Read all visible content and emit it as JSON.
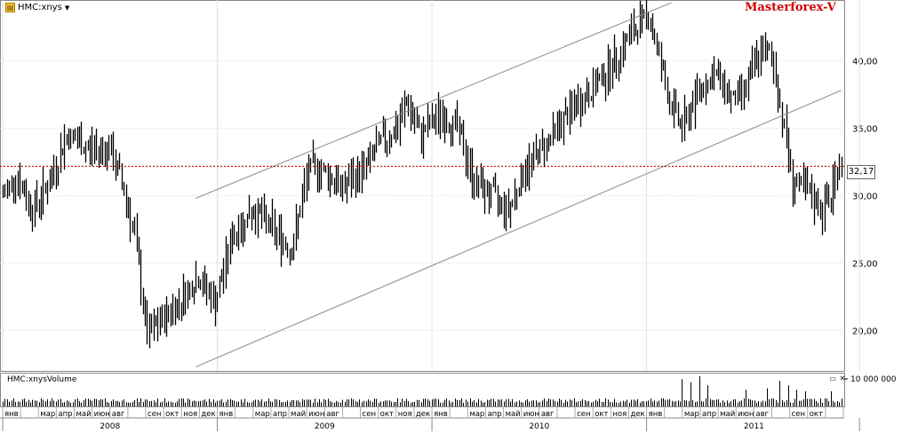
{
  "header": {
    "symbol": "HMC:xnys",
    "dropdown_icon": "chevron-down-icon",
    "symbol_icon": "chart-icon"
  },
  "brand": {
    "label": "Masterforex-V",
    "color": "#cc0000"
  },
  "volume_panel": {
    "title": "HMC:xnysVolume",
    "axis_label": "10 000 000",
    "minimize_icon": "minimize-icon",
    "close_icon": "close-icon"
  },
  "last_price": {
    "label": "32,17",
    "color": "#cc0000"
  },
  "chart_data": {
    "type": "ohlc",
    "title": "",
    "ylim": [
      17,
      44.5
    ],
    "y_ticks": [
      "20,00",
      "25,00",
      "30,00",
      "35,00",
      "40,00"
    ],
    "y_tick_values": [
      20,
      25,
      30,
      35,
      40
    ],
    "last_value": 32.17,
    "grid": true,
    "years": [
      "2008",
      "2009",
      "2010",
      "2011"
    ],
    "months": [
      "янв",
      "мар",
      "апр",
      "май",
      "июн",
      "авг",
      "сен",
      "окт",
      "ноя",
      "дек",
      "янв",
      "мар",
      "апр",
      "май",
      "июн",
      "авг",
      "сен",
      "окт",
      "ноя",
      "дек",
      "янв",
      "мар",
      "апр",
      "май",
      "июн",
      "авг",
      "сен",
      "окт",
      "ноя",
      "дек",
      "янв",
      "мар",
      "апр",
      "май",
      "июн",
      "авг",
      "сен",
      "окт"
    ],
    "price_keypoints": [
      [
        0,
        30
      ],
      [
        6,
        31.5
      ],
      [
        14,
        29
      ],
      [
        22,
        31
      ],
      [
        30,
        34.5
      ],
      [
        40,
        33.5
      ],
      [
        50,
        33.5
      ],
      [
        56,
        31
      ],
      [
        62,
        27
      ],
      [
        68,
        19.5
      ],
      [
        76,
        21
      ],
      [
        82,
        22
      ],
      [
        92,
        24
      ],
      [
        100,
        22
      ],
      [
        108,
        27
      ],
      [
        118,
        29
      ],
      [
        130,
        27
      ],
      [
        136,
        26
      ],
      [
        144,
        32
      ],
      [
        150,
        32
      ],
      [
        160,
        30.5
      ],
      [
        170,
        32
      ],
      [
        178,
        34
      ],
      [
        186,
        35
      ],
      [
        190,
        37
      ],
      [
        196,
        34.5
      ],
      [
        206,
        36
      ],
      [
        214,
        35
      ],
      [
        222,
        31
      ],
      [
        230,
        30
      ],
      [
        238,
        29
      ],
      [
        246,
        32
      ],
      [
        256,
        34
      ],
      [
        266,
        36
      ],
      [
        278,
        38
      ],
      [
        288,
        40
      ],
      [
        296,
        42
      ],
      [
        304,
        43.5
      ],
      [
        308,
        41
      ],
      [
        314,
        37
      ],
      [
        320,
        35
      ],
      [
        328,
        38
      ],
      [
        336,
        39
      ],
      [
        344,
        37
      ],
      [
        350,
        38
      ],
      [
        356,
        40.5
      ],
      [
        362,
        40.5
      ],
      [
        368,
        35
      ],
      [
        372,
        31
      ],
      [
        380,
        30
      ],
      [
        386,
        29
      ],
      [
        390,
        30
      ],
      [
        393,
        32.17
      ]
    ],
    "volume_spikes": [
      [
        320,
        0.9
      ],
      [
        324,
        0.8
      ],
      [
        328,
        1.0
      ],
      [
        332,
        0.7
      ],
      [
        350,
        0.55
      ],
      [
        360,
        0.6
      ],
      [
        366,
        0.85
      ],
      [
        370,
        0.7
      ],
      [
        374,
        0.55
      ],
      [
        378,
        0.5
      ],
      [
        390,
        0.5
      ]
    ],
    "channel": {
      "upper": {
        "start": [
          91,
          29.8
        ],
        "end": [
          315,
          44.3
        ]
      },
      "lower": {
        "start": [
          91,
          17.3
        ],
        "end": [
          395,
          37.8
        ]
      }
    }
  }
}
